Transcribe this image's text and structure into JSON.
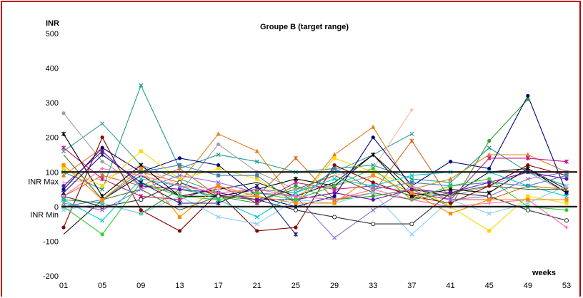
{
  "chart_data": {
    "type": "line",
    "title": "Groupe B (target range)",
    "ylabel": "INR",
    "xlabel": "weeks",
    "ylim": [
      -200,
      500
    ],
    "yticks": [
      -200,
      -100,
      0,
      100,
      200,
      300,
      400,
      500
    ],
    "x_categories": [
      "01",
      "05",
      "09",
      "13",
      "17",
      "21",
      "25",
      "29",
      "33",
      "37",
      "41",
      "45",
      "49",
      "53"
    ],
    "grid": false,
    "legend": "none",
    "reference_lines": [
      {
        "label": "INR Max",
        "y": 100,
        "color": "#1a1a1a"
      },
      {
        "label": "INR Min",
        "y": 0,
        "color": "#1a1a1a"
      }
    ],
    "series": [
      {
        "color": "#2ca02c",
        "marker": "o",
        "values": [
          20,
          10,
          -20,
          50,
          30,
          10,
          60,
          20,
          30,
          50,
          0,
          190,
          310,
          null
        ]
      },
      {
        "color": "#3aa0a0",
        "marker": "x",
        "values": [
          160,
          240,
          120,
          80,
          40,
          50,
          40,
          100,
          150,
          210,
          null,
          null,
          null,
          null
        ]
      },
      {
        "color": "#1f9e8e",
        "marker": "x",
        "values": [
          100,
          50,
          350,
          110,
          150,
          130,
          100,
          110,
          120,
          80,
          70,
          170,
          100,
          60
        ]
      },
      {
        "color": "#e0821e",
        "marker": "^",
        "values": [
          90,
          170,
          100,
          70,
          210,
          160,
          10,
          150,
          230,
          50,
          80,
          150,
          150,
          100
        ]
      },
      {
        "color": "#d2691e",
        "marker": "*",
        "values": [
          30,
          90,
          60,
          110,
          30,
          30,
          140,
          20,
          40,
          190,
          20,
          20,
          60,
          50
        ]
      },
      {
        "color": "#f5b7a0",
        "marker": "+",
        "values": [
          70,
          80,
          120,
          60,
          50,
          40,
          30,
          90,
          110,
          280,
          null,
          null,
          null,
          null
        ]
      },
      {
        "color": "#a0a0a0",
        "marker": "o",
        "values": [
          270,
          130,
          60,
          40,
          180,
          100,
          50,
          60,
          90,
          40,
          30,
          60,
          100,
          40
        ]
      },
      {
        "color": "#8b0000",
        "marker": "o",
        "values": [
          -60,
          200,
          -10,
          -70,
          40,
          -70,
          -60,
          120,
          70,
          30,
          10,
          60,
          120,
          90
        ]
      },
      {
        "color": "#c71585",
        "marker": "*",
        "values": [
          170,
          80,
          30,
          20,
          60,
          10,
          70,
          50,
          60,
          40,
          20,
          140,
          140,
          130
        ]
      },
      {
        "color": "#000000",
        "marker": "*",
        "values": [
          210,
          30,
          120,
          30,
          30,
          50,
          80,
          60,
          150,
          30,
          50,
          40,
          110,
          40
        ]
      },
      {
        "color": "#1a1a1a",
        "marker": "none",
        "values": [
          -80,
          20,
          90,
          30,
          50,
          70,
          30,
          70,
          150,
          50,
          30,
          100,
          110,
          50
        ]
      },
      {
        "color": "#000080",
        "marker": "o",
        "values": [
          50,
          170,
          100,
          140,
          120,
          30,
          0,
          30,
          200,
          60,
          130,
          110,
          320,
          40
        ]
      },
      {
        "color": "#ffd700",
        "marker": "s",
        "values": [
          110,
          60,
          160,
          80,
          110,
          80,
          10,
          140,
          100,
          60,
          0,
          -70,
          30,
          10
        ]
      },
      {
        "color": "#4682b4",
        "marker": "s",
        "values": [
          0,
          20,
          100,
          120,
          90,
          90,
          10,
          110,
          50,
          70,
          60,
          70,
          60,
          90
        ]
      },
      {
        "color": "#87cefa",
        "marker": "x",
        "values": [
          -10,
          10,
          -20,
          30,
          -30,
          -50,
          20,
          10,
          40,
          -80,
          20,
          -20,
          10,
          60
        ]
      },
      {
        "color": "#9370db",
        "marker": "x",
        "values": [
          10,
          -10,
          50,
          90,
          70,
          40,
          30,
          -90,
          -10,
          60,
          20,
          30,
          80,
          100
        ]
      },
      {
        "color": "#333333",
        "marker": "o_open",
        "values": [
          30,
          0,
          20,
          70,
          30,
          20,
          -10,
          -30,
          -50,
          -50,
          40,
          30,
          -10,
          -40
        ]
      },
      {
        "color": "#6a0dad",
        "marker": "o",
        "values": [
          60,
          160,
          60,
          50,
          40,
          20,
          20,
          40,
          20,
          50,
          40,
          70,
          100,
          80
        ]
      },
      {
        "color": "#00ced1",
        "marker": "x",
        "values": [
          20,
          -40,
          80,
          60,
          20,
          -30,
          40,
          80,
          60,
          90,
          100,
          100,
          60,
          30
        ]
      },
      {
        "color": "#32cd32",
        "marker": "o",
        "values": [
          0,
          -80,
          70,
          30,
          20,
          40,
          20,
          60,
          110,
          20,
          60,
          80,
          0,
          -10
        ]
      },
      {
        "color": "#ff69b4",
        "marker": "+",
        "values": [
          30,
          110,
          90,
          60,
          40,
          50,
          30,
          20,
          50,
          20,
          0,
          10,
          20,
          -60
        ]
      },
      {
        "color": "#556b2f",
        "marker": "none",
        "values": [
          150,
          20,
          50,
          -10,
          30,
          20,
          50,
          90,
          40,
          20,
          40,
          60,
          50,
          50
        ]
      },
      {
        "color": "#ff8c00",
        "marker": "s",
        "values": [
          120,
          20,
          110,
          -30,
          60,
          30,
          10,
          10,
          90,
          40,
          -20,
          20,
          20,
          20
        ]
      },
      {
        "color": "#191970",
        "marker": "*",
        "values": [
          40,
          150,
          70,
          10,
          10,
          60,
          -80,
          null,
          null,
          null,
          null,
          null,
          null,
          null
        ]
      }
    ]
  }
}
